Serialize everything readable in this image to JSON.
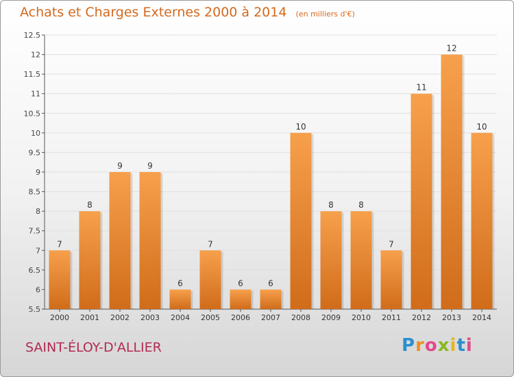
{
  "chart_data": {
    "type": "bar",
    "title": "Achats et Charges Externes 2000 à 2014",
    "subtitle": "(en milliers d'€)",
    "categories": [
      "2000",
      "2001",
      "2002",
      "2003",
      "2004",
      "2005",
      "2006",
      "2007",
      "2008",
      "2009",
      "2010",
      "2011",
      "2012",
      "2013",
      "2014"
    ],
    "values": [
      7,
      8,
      9,
      9,
      6,
      7,
      6,
      6,
      10,
      8,
      8,
      7,
      11,
      12,
      10
    ],
    "data_labels": [
      "7",
      "8",
      "9",
      "9",
      "6",
      "7",
      "6",
      "6",
      "10",
      "8",
      "8",
      "7",
      "11",
      "12",
      "10"
    ],
    "ylim": [
      5.5,
      12.5
    ],
    "yticks": [
      5.5,
      6,
      6.5,
      7,
      7.5,
      8,
      8.5,
      9,
      9.5,
      10,
      10.5,
      11,
      11.5,
      12,
      12.5
    ],
    "ytick_labels": [
      "5.5",
      "6",
      "6.5",
      "7",
      "7.5",
      "8",
      "8.5",
      "9",
      "9.5",
      "10",
      "10.5",
      "11",
      "11.5",
      "12",
      "12.5"
    ],
    "grid": true,
    "bar_color_light": "#f7a04c",
    "bar_color_dark": "#d06c1a"
  },
  "footer": {
    "place_name": "SAINT-ÉLOY-D'ALLIER"
  },
  "logo": {
    "text": "Proxiti",
    "colors": [
      "#2a8fd0",
      "#f28c1e",
      "#e04a8c",
      "#88b820",
      "#e7b51a",
      "#2a8fd0",
      "#e04a8c"
    ]
  }
}
